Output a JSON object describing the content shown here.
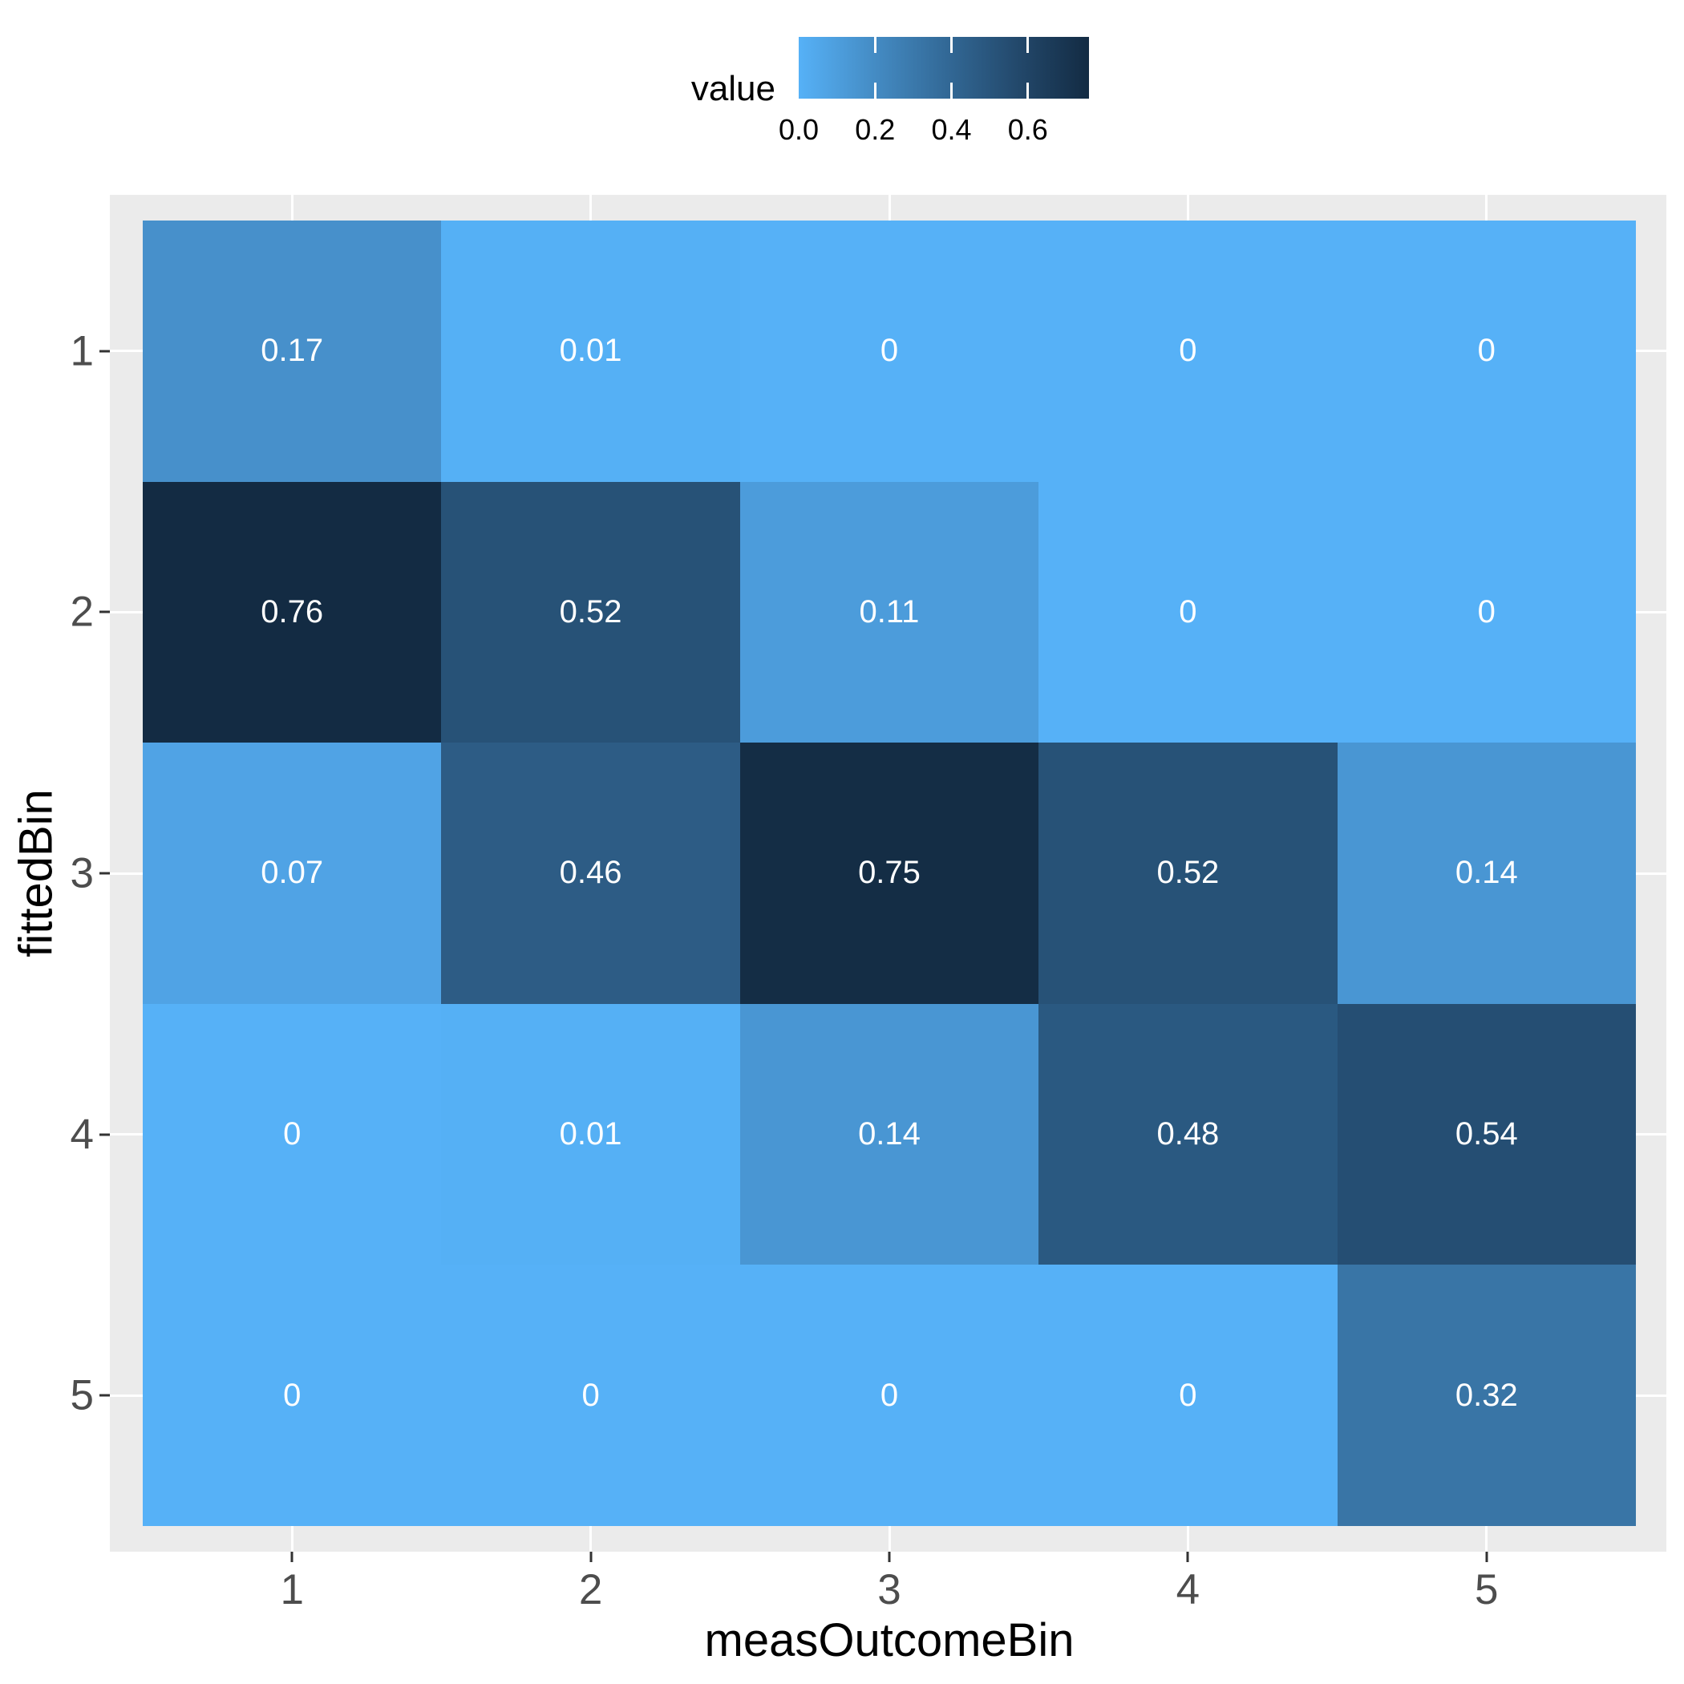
{
  "chart_data": {
    "type": "heatmap",
    "title": "",
    "xlabel": "measOutcomeBin",
    "ylabel": "fittedBin",
    "x_categories": [
      "1",
      "2",
      "3",
      "4",
      "5"
    ],
    "y_categories": [
      "1",
      "2",
      "3",
      "4",
      "5"
    ],
    "rows_axis": "fittedBin (top to bottom: 1..5)",
    "cols_axis": "measOutcomeBin (left to right: 1..5)",
    "values": [
      [
        0.17,
        0.01,
        0,
        0,
        0
      ],
      [
        0.76,
        0.52,
        0.11,
        0,
        0
      ],
      [
        0.07,
        0.46,
        0.75,
        0.52,
        0.14
      ],
      [
        0,
        0.01,
        0.14,
        0.48,
        0.54
      ],
      [
        0,
        0,
        0,
        0,
        0.32
      ]
    ],
    "cell_labels": [
      [
        "0.17",
        "0.01",
        "0",
        "0",
        "0"
      ],
      [
        "0.76",
        "0.52",
        "0.11",
        "0",
        "0"
      ],
      [
        "0.07",
        "0.46",
        "0.75",
        "0.52",
        "0.14"
      ],
      [
        "0",
        "0.01",
        "0.14",
        "0.48",
        "0.54"
      ],
      [
        "0",
        "0",
        "0",
        "0",
        "0.32"
      ]
    ],
    "cell_colors": [
      [
        "#4790CB",
        "#55B0F5",
        "#56B1F7",
        "#56B1F7",
        "#56B1F7"
      ],
      [
        "#132B43",
        "#275277",
        "#4C9CDB",
        "#56B1F7",
        "#56B1F7"
      ],
      [
        "#50A3E5",
        "#2D5C85",
        "#142D45",
        "#275277",
        "#4996D3"
      ],
      [
        "#56B1F7",
        "#55B0F5",
        "#4996D3",
        "#2A5981",
        "#254E73"
      ],
      [
        "#56B1F7",
        "#56B1F7",
        "#56B1F7",
        "#56B1F7",
        "#3975A6"
      ]
    ],
    "value_range": [
      0,
      0.76
    ],
    "grid": true,
    "legend_position": "top",
    "colors": {
      "panel_background": "#EBEBEB",
      "gridline": "#FFFFFF",
      "tick_mark": "#333333",
      "tick_label": "#4D4D4D",
      "axis_title": "#000000",
      "cell_text": "#FFFFFF",
      "low": "#56B1F7",
      "high": "#132B43"
    },
    "legend": {
      "title": "value",
      "tick_labels": [
        "0.0",
        "0.2",
        "0.4",
        "0.6"
      ],
      "tick_values": [
        0.0,
        0.2,
        0.4,
        0.6
      ],
      "gradient_stops": [
        {
          "pos": 0,
          "color": "#56B1F7"
        },
        {
          "pos": 0.25,
          "color": "#458DC6"
        },
        {
          "pos": 0.5,
          "color": "#336A98"
        },
        {
          "pos": 0.75,
          "color": "#23496C"
        },
        {
          "pos": 1,
          "color": "#132B43"
        }
      ]
    }
  }
}
